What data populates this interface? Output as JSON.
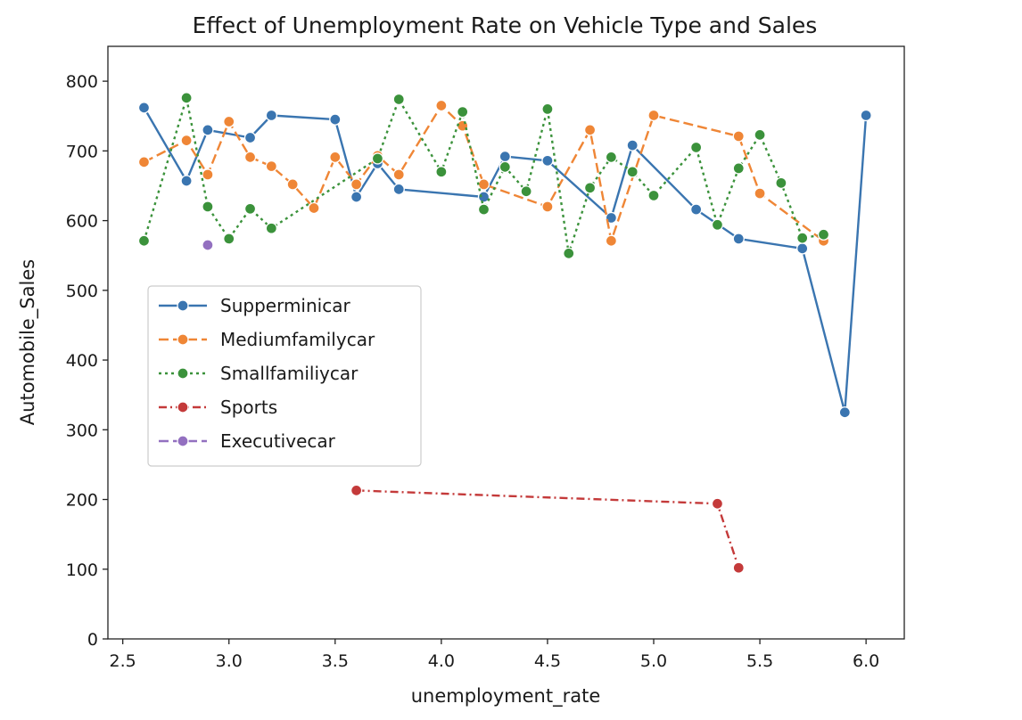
{
  "chart_data": {
    "type": "line",
    "title": "Effect of Unemployment Rate on Vehicle Type and Sales",
    "xlabel": "unemployment_rate",
    "ylabel": "Automobile_Sales",
    "xlim": [
      2.43,
      6.18
    ],
    "ylim": [
      0,
      850
    ],
    "xticks": [
      "2.5",
      "3.0",
      "3.5",
      "4.0",
      "4.5",
      "5.0",
      "5.5",
      "6.0"
    ],
    "yticks": [
      "0",
      "100",
      "200",
      "300",
      "400",
      "500",
      "600",
      "700",
      "800"
    ],
    "grid": false,
    "legend_position": "center-left",
    "series": [
      {
        "name": "Supperminicar",
        "color": "#3a75b0",
        "dash": "solid",
        "points": [
          [
            2.6,
            762
          ],
          [
            2.8,
            657
          ],
          [
            2.9,
            730
          ],
          [
            3.1,
            719
          ],
          [
            3.2,
            751
          ],
          [
            3.5,
            745
          ],
          [
            3.6,
            634
          ],
          [
            3.7,
            682
          ],
          [
            3.8,
            645
          ],
          [
            4.2,
            634
          ],
          [
            4.3,
            692
          ],
          [
            4.5,
            686
          ],
          [
            4.8,
            604
          ],
          [
            4.9,
            708
          ],
          [
            5.2,
            616
          ],
          [
            5.4,
            574
          ],
          [
            5.7,
            560
          ],
          [
            5.9,
            325
          ],
          [
            6.0,
            751
          ]
        ]
      },
      {
        "name": "Mediumfamilycar",
        "color": "#ef8636",
        "dash": "dashed",
        "points": [
          [
            2.6,
            684
          ],
          [
            2.8,
            715
          ],
          [
            2.9,
            666
          ],
          [
            3.0,
            742
          ],
          [
            3.1,
            691
          ],
          [
            3.2,
            678
          ],
          [
            3.3,
            652
          ],
          [
            3.4,
            618
          ],
          [
            3.5,
            691
          ],
          [
            3.6,
            652
          ],
          [
            3.7,
            693
          ],
          [
            3.8,
            666
          ],
          [
            4.0,
            765
          ],
          [
            4.1,
            736
          ],
          [
            4.2,
            652
          ],
          [
            4.5,
            620
          ],
          [
            4.7,
            730
          ],
          [
            4.8,
            571
          ],
          [
            5.0,
            751
          ],
          [
            5.4,
            721
          ],
          [
            5.5,
            639
          ],
          [
            5.8,
            571
          ]
        ]
      },
      {
        "name": "Smallfamiliycar",
        "color": "#3b923b",
        "dash": "dotted",
        "points": [
          [
            2.6,
            571
          ],
          [
            2.8,
            776
          ],
          [
            2.9,
            620
          ],
          [
            3.0,
            574
          ],
          [
            3.1,
            617
          ],
          [
            3.2,
            589
          ],
          [
            3.7,
            689
          ],
          [
            3.8,
            774
          ],
          [
            4.0,
            670
          ],
          [
            4.1,
            756
          ],
          [
            4.2,
            616
          ],
          [
            4.3,
            677
          ],
          [
            4.4,
            642
          ],
          [
            4.5,
            760
          ],
          [
            4.6,
            553
          ],
          [
            4.7,
            647
          ],
          [
            4.8,
            691
          ],
          [
            4.9,
            670
          ],
          [
            5.0,
            636
          ],
          [
            5.2,
            705
          ],
          [
            5.3,
            594
          ],
          [
            5.4,
            675
          ],
          [
            5.5,
            723
          ],
          [
            5.6,
            654
          ],
          [
            5.7,
            575
          ],
          [
            5.8,
            580
          ]
        ]
      },
      {
        "name": "Sports",
        "color": "#c43a3a",
        "dash": "dashdot",
        "points": [
          [
            3.6,
            213
          ],
          [
            5.3,
            194
          ],
          [
            5.4,
            102
          ]
        ]
      },
      {
        "name": "Executivecar",
        "color": "#9370c0",
        "dash": "dashed",
        "points": [
          [
            2.9,
            565
          ]
        ]
      }
    ]
  }
}
